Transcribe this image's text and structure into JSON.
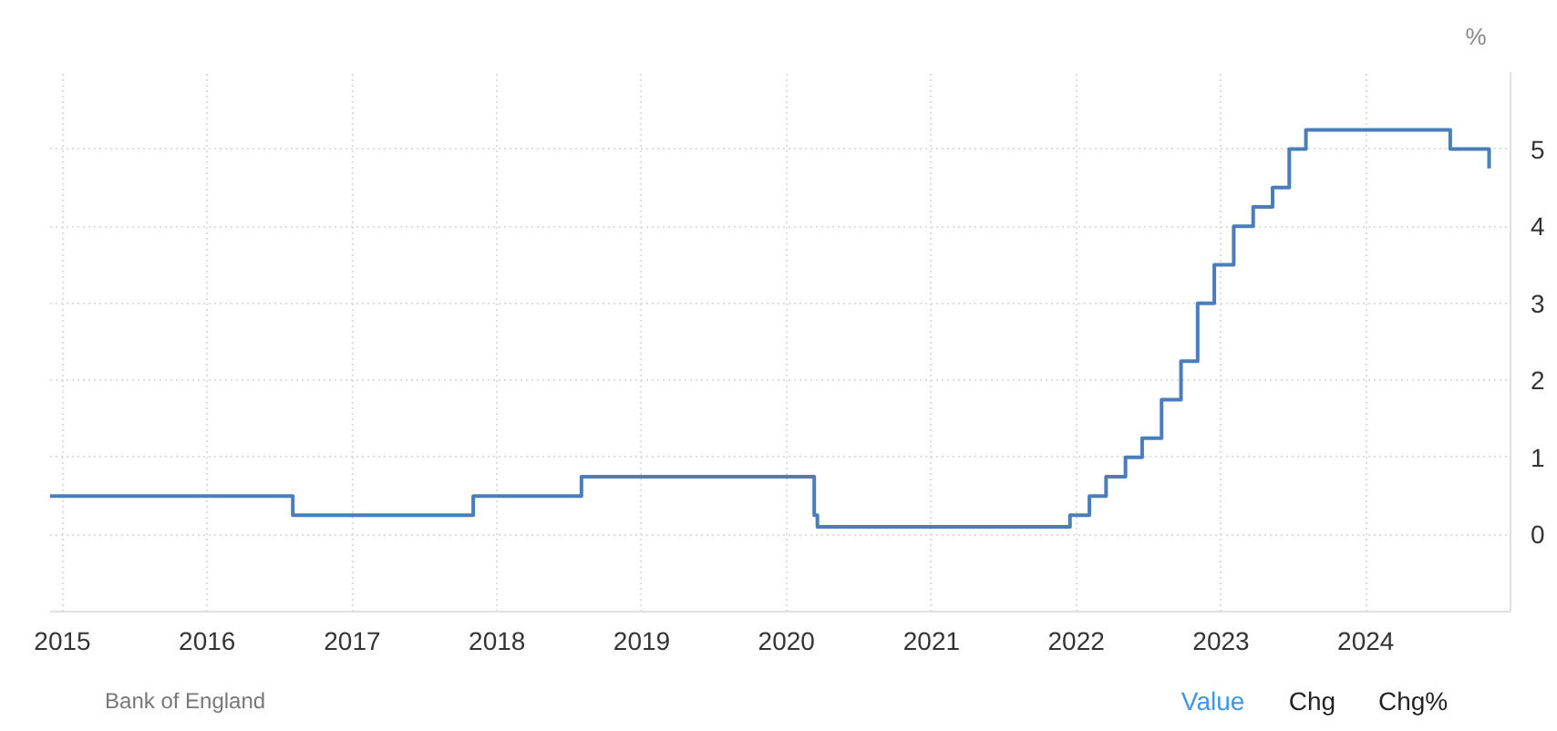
{
  "chart_data": {
    "type": "step",
    "ylabel": "%",
    "x": [
      "2014-12-01",
      "2016-08-04",
      "2017-11-02",
      "2018-08-02",
      "2020-03-11",
      "2020-03-19",
      "2021-12-16",
      "2022-02-03",
      "2022-03-17",
      "2022-05-05",
      "2022-06-16",
      "2022-08-04",
      "2022-09-22",
      "2022-11-03",
      "2022-12-15",
      "2023-02-02",
      "2023-03-23",
      "2023-05-11",
      "2023-06-22",
      "2023-08-03",
      "2024-08-01",
      "2024-11-07"
    ],
    "series": [
      {
        "color": "#4a7ebb",
        "values": [
          0.5,
          0.25,
          0.5,
          0.75,
          0.25,
          0.1,
          0.25,
          0.5,
          0.75,
          1,
          1.25,
          1.75,
          2.25,
          3,
          3.5,
          4,
          4.25,
          4.5,
          5,
          5.25,
          5,
          4.75
        ]
      }
    ],
    "xlim": [
      "2014-12-01",
      "2024-12-31"
    ],
    "xticks": [
      "2015",
      "2016",
      "2017",
      "2018",
      "2019",
      "2020",
      "2021",
      "2022",
      "2023",
      "2024"
    ],
    "ylim": [
      -1,
      6
    ],
    "yticks": [
      0,
      1,
      2,
      3,
      4,
      5
    ],
    "grid": true,
    "annotations": [
      "Bank of England",
      "Value",
      "Chg",
      "Chg%"
    ]
  }
}
